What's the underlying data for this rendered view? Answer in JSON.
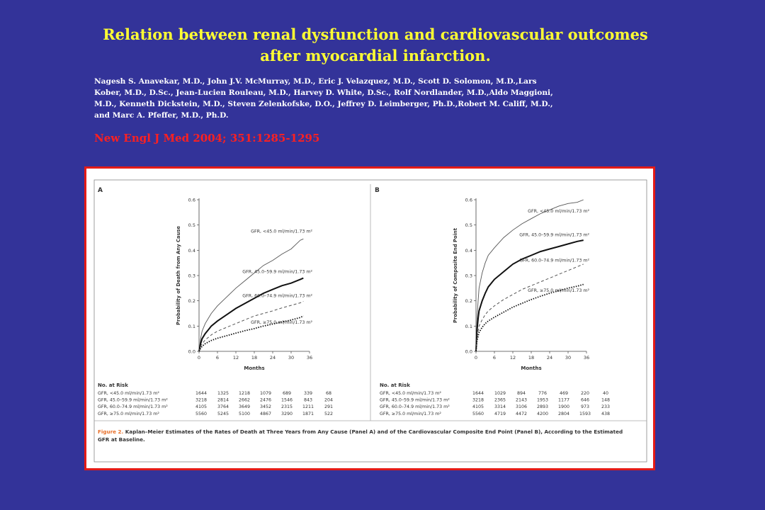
{
  "title_line1": "Relation between renal dysfunction and cardiovascular outcomes",
  "title_line2": "after myocardial infarction.",
  "authors": [
    "Nagesh S. Anavekar, M.D., John J.V. McMurray, M.D., Eric J. Velazquez, M.D., Scott D. Solomon, M.D.,Lars",
    "Kober, M.D., D.Sc., Jean-Lucien Rouleau, M.D., Harvey D. White, D.Sc., Rolf Nordlander, M.D.,Aldo Maggioni,",
    "M.D., Kenneth Dickstein, M.D., Steven Zelenkofske, D.O., Jeffrey D. Leimberger, Ph.D.,Robert M. Califf, M.D.,",
    "and Marc A. Pfeffer, M.D., Ph.D."
  ],
  "journal": "New Engl J Med 2004; 351:1285-1295",
  "figure_caption_label": "Figure 2.",
  "figure_caption": "Kaplan–Meier Estimates of the Rates of Death at Three Years from Any Cause (Panel A) and of the Cardiovascular Composite End Point (Panel B), According to the Estimated GFR at Baseline.",
  "risk_header": "No. at Risk",
  "colors": {
    "background": "#333399",
    "title": "#ffff33",
    "journal": "#ff2020",
    "frame": "#e41b17",
    "caption": "#e8702a"
  },
  "chart_data": [
    {
      "type": "line",
      "panel": "A",
      "ylabel": "Probability of Death from Any Cause",
      "xlabel": "Months",
      "xlim": [
        0,
        36
      ],
      "ylim": [
        0,
        0.6
      ],
      "x_ticks": [
        0,
        6,
        12,
        18,
        24,
        30,
        36
      ],
      "y_ticks": [
        0.0,
        0.1,
        0.2,
        0.3,
        0.4,
        0.5,
        0.6
      ],
      "series": [
        {
          "name": "GFR, <45.0 ml/min/1.73 m²",
          "style": "solid-thin",
          "x": [
            0,
            0.5,
            1,
            2,
            3,
            4,
            6,
            9,
            12,
            15,
            18,
            21,
            24,
            27,
            30,
            33,
            34
          ],
          "y": [
            0,
            0.05,
            0.08,
            0.11,
            0.13,
            0.15,
            0.18,
            0.215,
            0.25,
            0.28,
            0.31,
            0.34,
            0.36,
            0.385,
            0.405,
            0.44,
            0.445
          ],
          "label_anchor_y": 0.47
        },
        {
          "name": "GFR, 45.0–59.9 ml/min/1.73 m²",
          "style": "solid-thick",
          "x": [
            0,
            0.5,
            1,
            2,
            3,
            4,
            6,
            9,
            12,
            15,
            18,
            21,
            24,
            27,
            30,
            33,
            34
          ],
          "y": [
            0,
            0.03,
            0.05,
            0.07,
            0.085,
            0.1,
            0.12,
            0.145,
            0.17,
            0.19,
            0.21,
            0.23,
            0.245,
            0.26,
            0.27,
            0.285,
            0.29
          ],
          "label_anchor_y": 0.31
        },
        {
          "name": "GFR, 60.0–74.9 ml/min/1.73 m²",
          "style": "dashed",
          "x": [
            0,
            0.5,
            1,
            2,
            3,
            4,
            6,
            9,
            12,
            15,
            18,
            21,
            24,
            27,
            30,
            33,
            34
          ],
          "y": [
            0,
            0.02,
            0.03,
            0.045,
            0.055,
            0.065,
            0.08,
            0.095,
            0.11,
            0.125,
            0.14,
            0.15,
            0.16,
            0.172,
            0.182,
            0.192,
            0.198
          ],
          "label_anchor_y": 0.215
        },
        {
          "name": "GFR, ≥75.0 ml/min/1.73 m²",
          "style": "dotted",
          "x": [
            0,
            0.5,
            1,
            2,
            3,
            4,
            6,
            9,
            12,
            15,
            18,
            21,
            24,
            27,
            30,
            33,
            34
          ],
          "y": [
            0,
            0.012,
            0.02,
            0.03,
            0.037,
            0.043,
            0.052,
            0.062,
            0.072,
            0.082,
            0.09,
            0.1,
            0.108,
            0.116,
            0.124,
            0.134,
            0.14
          ],
          "label_anchor_y": 0.11
        }
      ],
      "risk_table": [
        {
          "group": "GFR, <45.0 ml/min/1.73 m²",
          "values": [
            1644,
            1325,
            1218,
            1079,
            689,
            339,
            68
          ]
        },
        {
          "group": "GFR, 45.0–59.9 ml/min/1.73 m²",
          "values": [
            3218,
            2814,
            2662,
            2476,
            1546,
            843,
            204
          ]
        },
        {
          "group": "GFR, 60.0–74.9 ml/min/1.73 m²",
          "values": [
            4105,
            3764,
            3649,
            3452,
            2315,
            1211,
            291
          ]
        },
        {
          "group": "GFR, ≥75.0 ml/min/1.73 m²",
          "values": [
            5560,
            5245,
            5100,
            4867,
            3290,
            1871,
            522
          ]
        }
      ]
    },
    {
      "type": "line",
      "panel": "B",
      "ylabel": "Probability of Composite End Point",
      "xlabel": "Months",
      "xlim": [
        0,
        36
      ],
      "ylim": [
        0,
        0.6
      ],
      "x_ticks": [
        0,
        6,
        12,
        18,
        24,
        30,
        36
      ],
      "y_ticks": [
        0.0,
        0.1,
        0.2,
        0.3,
        0.4,
        0.5,
        0.6
      ],
      "series": [
        {
          "name": "GFR, <45.0 ml/min/1.73 m²",
          "style": "solid-thin",
          "x": [
            0,
            0.3,
            0.7,
            1,
            2,
            3,
            4,
            6,
            9,
            12,
            15,
            18,
            21,
            24,
            27,
            30,
            33,
            35
          ],
          "y": [
            0,
            0.12,
            0.2,
            0.25,
            0.31,
            0.35,
            0.38,
            0.41,
            0.45,
            0.48,
            0.505,
            0.525,
            0.545,
            0.56,
            0.575,
            0.585,
            0.59,
            0.6
          ],
          "label_anchor_y": 0.55
        },
        {
          "name": "GFR, 45.0–59.9 ml/min/1.73 m²",
          "style": "solid-thick",
          "x": [
            0,
            0.3,
            0.7,
            1,
            2,
            3,
            4,
            6,
            9,
            12,
            15,
            18,
            21,
            24,
            27,
            30,
            33,
            35
          ],
          "y": [
            0,
            0.08,
            0.13,
            0.16,
            0.2,
            0.23,
            0.255,
            0.285,
            0.315,
            0.345,
            0.365,
            0.38,
            0.395,
            0.405,
            0.415,
            0.425,
            0.435,
            0.44
          ],
          "label_anchor_y": 0.455
        },
        {
          "name": "GFR, 60.0–74.9 ml/min/1.73 m²",
          "style": "dashed",
          "x": [
            0,
            0.3,
            0.7,
            1,
            2,
            3,
            4,
            6,
            9,
            12,
            15,
            18,
            21,
            24,
            27,
            30,
            33,
            35
          ],
          "y": [
            0,
            0.05,
            0.08,
            0.1,
            0.125,
            0.145,
            0.16,
            0.18,
            0.205,
            0.225,
            0.245,
            0.26,
            0.275,
            0.29,
            0.305,
            0.32,
            0.335,
            0.345
          ],
          "label_anchor_y": 0.355
        },
        {
          "name": "GFR, ≥75.0 ml/min/1.73 m²",
          "style": "dotted",
          "x": [
            0,
            0.3,
            0.7,
            1,
            2,
            3,
            4,
            6,
            9,
            12,
            15,
            18,
            21,
            24,
            27,
            30,
            33,
            35
          ],
          "y": [
            0,
            0.04,
            0.06,
            0.075,
            0.095,
            0.11,
            0.12,
            0.135,
            0.155,
            0.175,
            0.19,
            0.205,
            0.218,
            0.23,
            0.24,
            0.25,
            0.258,
            0.265
          ],
          "label_anchor_y": 0.235
        }
      ],
      "risk_table": [
        {
          "group": "GFR, <45.0 ml/min/1.73 m²",
          "values": [
            1644,
            1029,
            894,
            776,
            469,
            220,
            40
          ]
        },
        {
          "group": "GFR, 45.0–59.9 ml/min/1.73 m²",
          "values": [
            3218,
            2365,
            2143,
            1953,
            1177,
            646,
            148
          ]
        },
        {
          "group": "GFR, 60.0–74.9 ml/min/1.73 m²",
          "values": [
            4105,
            3314,
            3106,
            2893,
            1900,
            973,
            233
          ]
        },
        {
          "group": "GFR, ≥75.0 ml/min/1.73 m²",
          "values": [
            5560,
            4719,
            4472,
            4200,
            2804,
            1593,
            438
          ]
        }
      ]
    }
  ]
}
